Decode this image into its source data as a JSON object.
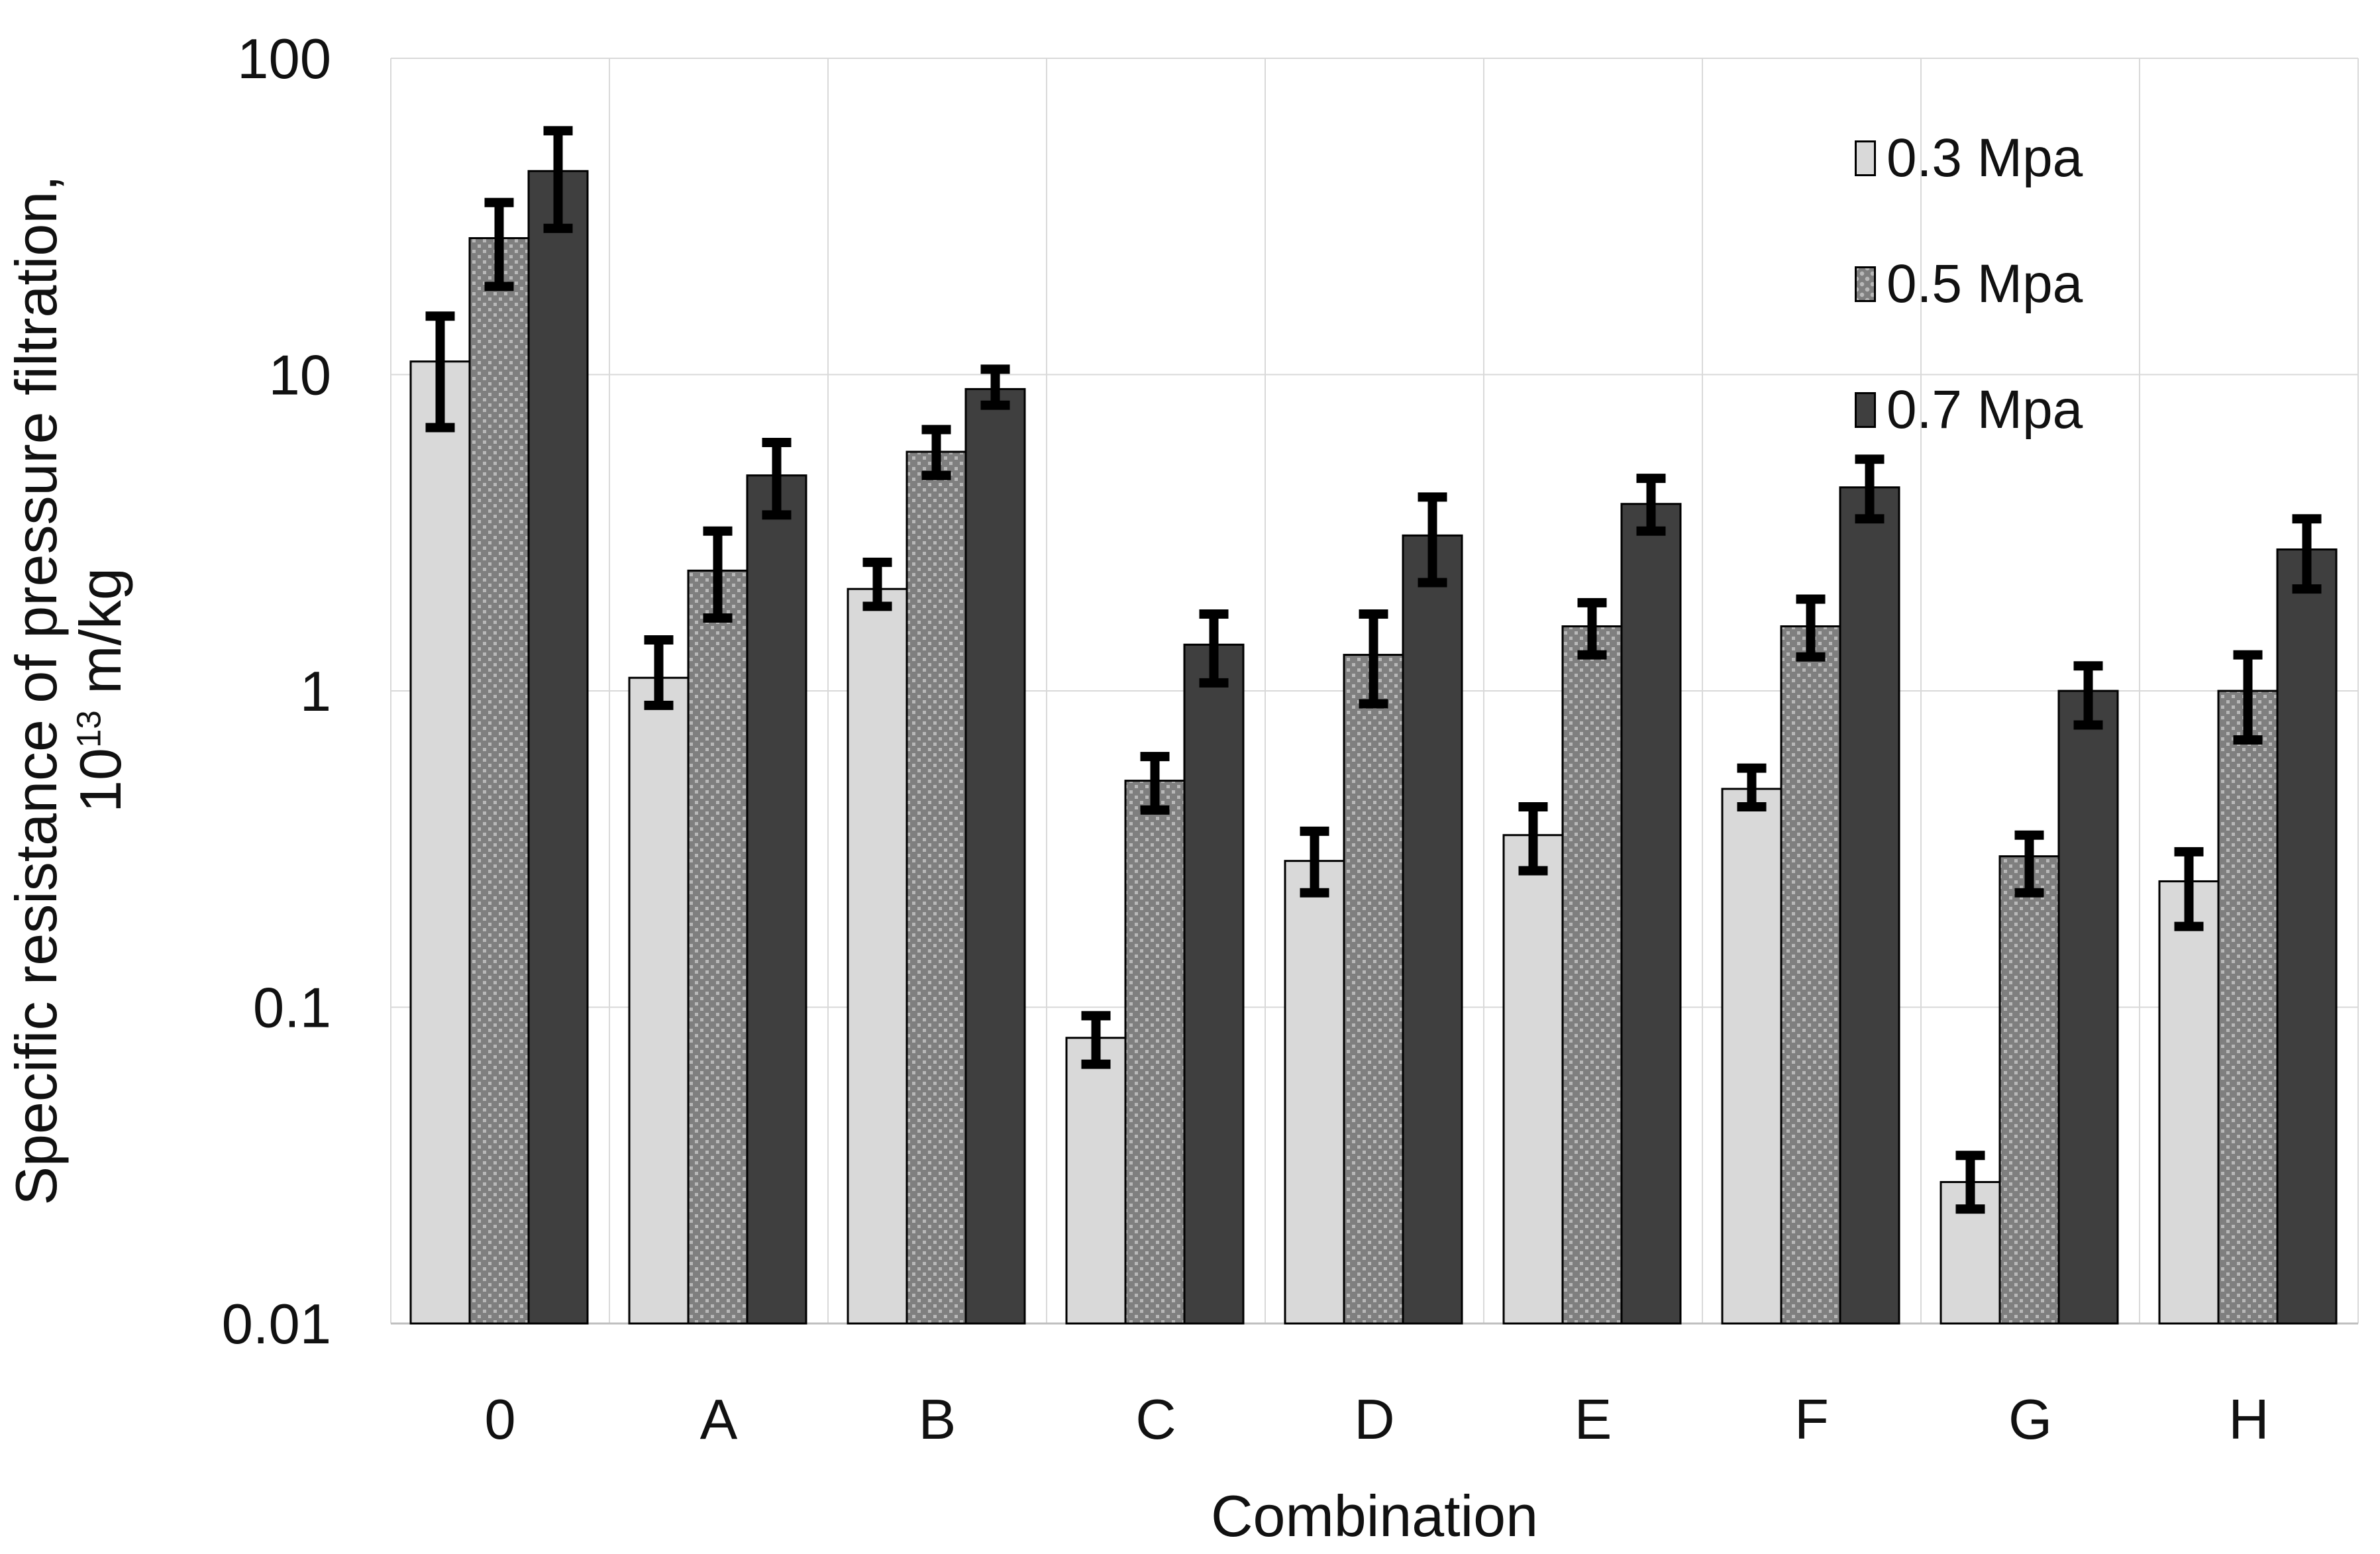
{
  "chart_data": {
    "type": "bar",
    "title": "",
    "xlabel": "Combination",
    "ylabel": "Specific resistance of pressure filtration, 10^13 m/kg",
    "y_scale": "log",
    "ylim": [
      0.01,
      100
    ],
    "grid": true,
    "legend_position": "top-right",
    "categories": [
      "0",
      "A",
      "B",
      "C",
      "D",
      "E",
      "F",
      "G",
      "H"
    ],
    "y_ticks": [
      {
        "label": "100",
        "value": 100
      },
      {
        "label": "10",
        "value": 10
      },
      {
        "label": "1",
        "value": 1
      },
      {
        "label": "0.1",
        "value": 0.1
      },
      {
        "label": "0.01",
        "value": 0.01
      }
    ],
    "series": [
      {
        "name": "0.3 Mpa",
        "fill": "#d9d9d9",
        "pattern": "solid",
        "values": [
          11,
          1.1,
          2.1,
          0.08,
          0.29,
          0.35,
          0.49,
          0.028,
          0.25
        ],
        "err_low": [
          6.8,
          0.9,
          1.85,
          0.066,
          0.23,
          0.27,
          0.43,
          0.023,
          0.18
        ],
        "err_high": [
          15.3,
          1.45,
          2.55,
          0.094,
          0.36,
          0.43,
          0.57,
          0.034,
          0.31
        ]
      },
      {
        "name": "0.5 Mpa",
        "fill": "#7f7f7f",
        "pattern": "dots",
        "values": [
          27,
          2.4,
          5.7,
          0.52,
          1.3,
          1.6,
          1.6,
          0.3,
          1.0
        ],
        "err_low": [
          19,
          1.7,
          4.8,
          0.42,
          0.91,
          1.3,
          1.28,
          0.23,
          0.7
        ],
        "err_high": [
          35,
          3.2,
          6.7,
          0.62,
          1.75,
          1.9,
          1.95,
          0.35,
          1.3
        ]
      },
      {
        "name": "0.7 Mpa",
        "fill": "#3f3f3f",
        "pattern": "solid",
        "values": [
          44,
          4.8,
          9.0,
          1.4,
          3.1,
          3.9,
          4.4,
          1.0,
          2.8
        ],
        "err_low": [
          29,
          3.6,
          8.0,
          1.06,
          2.2,
          3.2,
          3.5,
          0.78,
          2.1
        ],
        "err_high": [
          59,
          6.1,
          10.4,
          1.75,
          4.1,
          4.7,
          5.4,
          1.2,
          3.5
        ]
      }
    ]
  },
  "axes": {
    "x_label": "Combination",
    "y_label_line1": "Specific resistance of pressure filtration,",
    "y_unit_base": "10",
    "y_unit_sup": "13",
    "y_unit_rest": " m/kg"
  },
  "colors": {
    "gridline": "#d9d9d9",
    "axis_line": "#bfbfbf",
    "error_bar": "#000000",
    "bar_outline": "#000000",
    "text": "#111111",
    "dot_accent": "#b8b8b8"
  }
}
